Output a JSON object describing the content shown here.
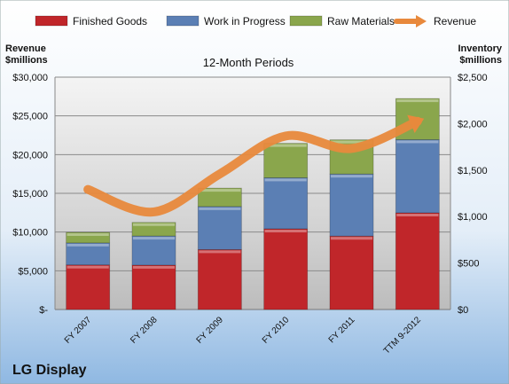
{
  "chart_data": {
    "type": "bar",
    "stacked": true,
    "title": "LG Display",
    "subtitle": "12-Month Periods",
    "y_left_label_line1": "Revenue",
    "y_left_label_line2": "$millions",
    "y_right_label_line1": "Inventory",
    "y_right_label_line2": "$millions",
    "categories": [
      "FY 2007",
      "FY 2008",
      "FY 2009",
      "FY 2010",
      "FY 2011",
      "TTM 9-2012"
    ],
    "y_left_ticks": [
      "$-",
      "$5,000",
      "$10,000",
      "$15,000",
      "$20,000",
      "$25,000",
      "$30,000"
    ],
    "y_right_ticks": [
      "$0",
      "$500",
      "$1,000",
      "$1,500",
      "$2,000",
      "$2,500"
    ],
    "ylim_left": [
      0,
      30000
    ],
    "ylim_right": [
      0,
      2500
    ],
    "grid": true,
    "legend_position": "top",
    "series": [
      {
        "name": "Finished Goods",
        "axis": "right",
        "kind": "bar",
        "color": "#c0262a",
        "values": [
          480,
          478,
          645,
          868,
          790,
          1040
        ]
      },
      {
        "name": "Work in Progress",
        "axis": "right",
        "kind": "bar",
        "color": "#5b7fb4",
        "values": [
          237,
          313,
          463,
          550,
          668,
          788
        ]
      },
      {
        "name": "Raw Materials",
        "axis": "right",
        "kind": "bar",
        "color": "#8aa64c",
        "values": [
          113,
          146,
          198,
          370,
          368,
          442
        ]
      },
      {
        "name": "Revenue",
        "axis": "left",
        "kind": "line",
        "color": "#e8893c",
        "values": [
          15500,
          12600,
          17500,
          22400,
          20800,
          24300
        ]
      }
    ]
  }
}
